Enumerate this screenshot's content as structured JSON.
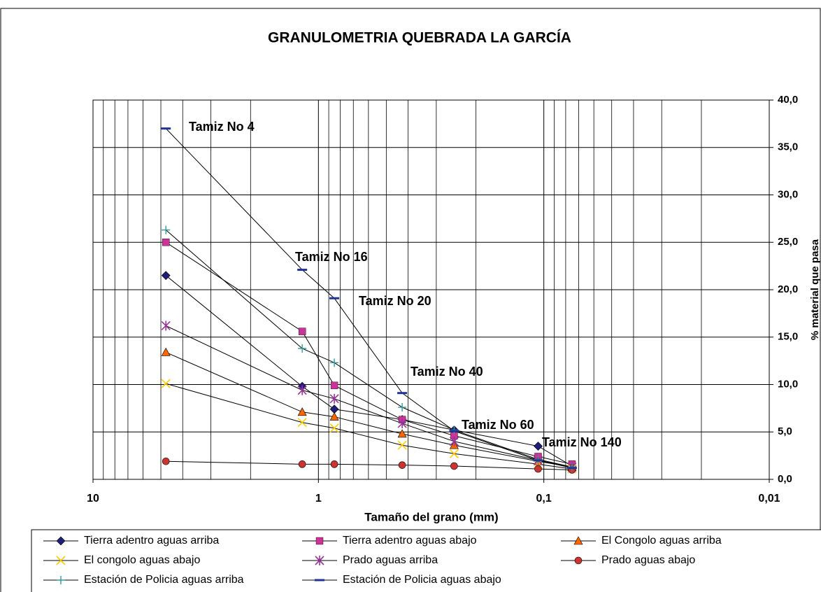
{
  "chart_data": {
    "type": "line",
    "title": "GRANULOMETRIA QUEBRADA LA GARCÍA",
    "x_label": "Tamaño del grano (mm)",
    "y_label": "% material que pasa",
    "x": [
      4.75,
      1.18,
      0.85,
      0.425,
      0.25,
      0.106,
      0.075
    ],
    "xlim": [
      10,
      0.01
    ],
    "xticks": [
      10,
      1,
      {
        "value": 0.1,
        "label": "0,1"
      },
      {
        "value": 0.01,
        "label": "0,01"
      }
    ],
    "x_log": true,
    "ylim": [
      0,
      40
    ],
    "yticks": [
      {
        "value": 0,
        "label": "0,0"
      },
      {
        "value": 5,
        "label": "5,0"
      },
      {
        "value": 10,
        "label": "10,0"
      },
      {
        "value": 15,
        "label": "15,0"
      },
      {
        "value": 20,
        "label": "20,0"
      },
      {
        "value": 25,
        "label": "25,0"
      },
      {
        "value": 30,
        "label": "30,0"
      },
      {
        "value": 35,
        "label": "35,0"
      },
      {
        "value": 40,
        "label": "40,0"
      }
    ],
    "y_axis_side": "right",
    "grid": true,
    "line_color": "#000000",
    "legend": "bottom",
    "annotations": [
      "Tamiz No 4",
      "Tamiz No 16",
      "Tamiz No 20",
      "Tamiz No 40",
      "Tamiz No 60",
      "Tamiz No 140"
    ],
    "series": [
      {
        "name": "Tierra adentro aguas arriba",
        "color": "#1f1f7a",
        "marker": "diamond",
        "values": [
          21.5,
          9.8,
          7.4,
          6.3,
          5.2,
          3.5,
          1.4
        ]
      },
      {
        "name": "Tierra adentro aguas abajo",
        "color": "#cc3399",
        "marker": "square",
        "values": [
          25.0,
          15.6,
          9.9,
          6.3,
          4.6,
          2.4,
          1.6
        ]
      },
      {
        "name": "El Congolo aguas arriba",
        "color": "#ff6600",
        "marker": "triangle",
        "values": [
          13.4,
          7.1,
          6.6,
          4.8,
          3.6,
          1.9,
          1.3
        ]
      },
      {
        "name": "El congolo aguas abajo",
        "color": "#ffcc00",
        "marker": "x",
        "values": [
          10.1,
          6.0,
          5.4,
          3.6,
          2.7,
          1.6,
          1.1
        ]
      },
      {
        "name": "Prado aguas arriba",
        "color": "#993399",
        "marker": "star",
        "values": [
          16.2,
          9.4,
          8.5,
          5.9,
          4.0,
          2.0,
          1.3
        ]
      },
      {
        "name": "Prado aguas abajo",
        "color": "#cc3333",
        "marker": "circle",
        "values": [
          1.9,
          1.6,
          1.6,
          1.5,
          1.4,
          1.1,
          1.0
        ]
      },
      {
        "name": "Estación de Policia aguas arriba",
        "color": "#339999",
        "marker": "plus",
        "values": [
          26.3,
          13.8,
          12.3,
          7.6,
          5.2,
          2.1,
          1.3
        ]
      },
      {
        "name": "Estación de Policia aguas abajo",
        "color": "#1f3399",
        "marker": "dash",
        "values": [
          37.0,
          22.1,
          19.1,
          9.1,
          5.1,
          2.0,
          1.2
        ]
      }
    ]
  }
}
